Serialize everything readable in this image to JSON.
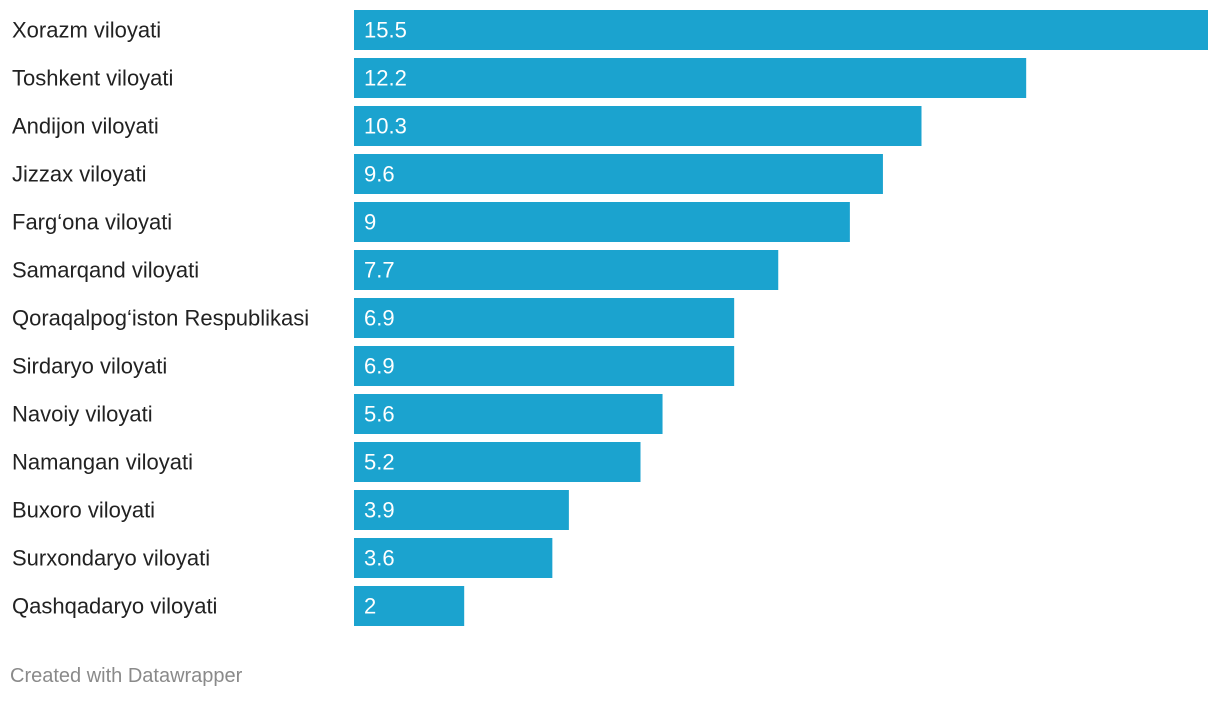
{
  "chart_data": {
    "type": "bar",
    "orientation": "horizontal",
    "title": "",
    "xlabel": "",
    "ylabel": "",
    "xlim": [
      0,
      15.5
    ],
    "grid": false,
    "bar_color": "#1ba3cf",
    "categories": [
      "Xorazm viloyati",
      "Toshkent viloyati",
      "Andijon viloyati",
      "Jizzax viloyati",
      "Farg‘ona viloyati",
      "Samarqand viloyati",
      "Qoraqalpog‘iston Respublikasi",
      "Sirdaryo viloyati",
      "Navoiy viloyati",
      "Namangan viloyati",
      "Buxoro viloyati",
      "Surxondaryo viloyati",
      "Qashqadaryo viloyati"
    ],
    "values": [
      15.5,
      12.2,
      10.3,
      9.6,
      9,
      7.7,
      6.9,
      6.9,
      5.6,
      5.2,
      3.9,
      3.6,
      2
    ]
  },
  "footer": {
    "credit": "Created with Datawrapper"
  }
}
